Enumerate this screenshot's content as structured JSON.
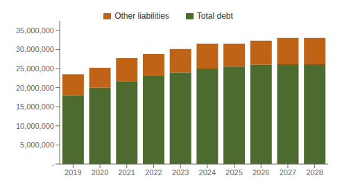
{
  "chart_data": {
    "type": "bar",
    "stacked": true,
    "categories": [
      "2019",
      "2020",
      "2021",
      "2022",
      "2023",
      "2024",
      "2025",
      "2026",
      "2027",
      "2028"
    ],
    "series": [
      {
        "name": "Total debt",
        "color": "#4d6b2e",
        "values": [
          18000000,
          20000000,
          21700000,
          23000000,
          24000000,
          25000000,
          25500000,
          26000000,
          26100000,
          26100000
        ]
      },
      {
        "name": "Other liabilities",
        "color": "#bf6317",
        "values": [
          5500000,
          5200000,
          6000000,
          5800000,
          6100000,
          6500000,
          6000000,
          6300000,
          6900000,
          6900000
        ]
      }
    ],
    "ylim": [
      0,
      37500000
    ],
    "yticks": [
      {
        "value": 0,
        "label": "-"
      },
      {
        "value": 5000000,
        "label": "5,000,000"
      },
      {
        "value": 10000000,
        "label": "10,000,000"
      },
      {
        "value": 15000000,
        "label": "15,000,000"
      },
      {
        "value": 20000000,
        "label": "20,000,000"
      },
      {
        "value": 25000000,
        "label": "25,000,000"
      },
      {
        "value": 30000000,
        "label": "30,000,000"
      },
      {
        "value": 35000000,
        "label": "35,000,000"
      }
    ],
    "grid": false,
    "legend": "top"
  }
}
